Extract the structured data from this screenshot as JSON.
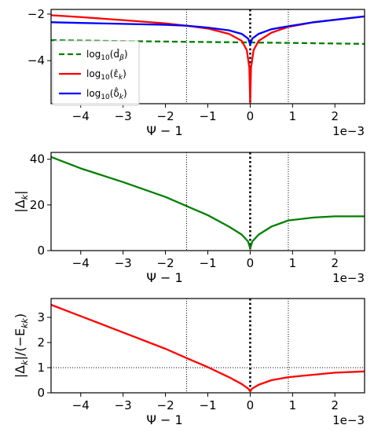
{
  "chart_data": [
    {
      "type": "line",
      "xlabel": "Ψ − 1",
      "ylabel": "",
      "x_multiplier": "1e−3",
      "xlim": [
        -4.7,
        2.7
      ],
      "ylim": [
        -5.85,
        -1.8
      ],
      "x_ticks": [
        -4,
        -3,
        -2,
        -1,
        0,
        1,
        2
      ],
      "x_tick_labels": [
        "−4",
        "−3",
        "−2",
        "−1",
        "0",
        "1",
        "2"
      ],
      "y_ticks": [
        -4,
        -2
      ],
      "y_tick_labels": [
        "−4",
        "−2"
      ],
      "vlines": [
        {
          "x": -1.5,
          "style": "dotted-thin"
        },
        {
          "x": 0,
          "style": "dotted-thick"
        },
        {
          "x": 0.9,
          "style": "dotted-thin"
        }
      ],
      "legend": {
        "placement": "center-left",
        "entries": [
          {
            "label_base": "log",
            "label_sub": "10",
            "label_arg": "(d̂",
            "label_arg_sub": "β",
            "label_close": ")",
            "color": "#008000",
            "dash": true
          },
          {
            "label_base": "log",
            "label_sub": "10",
            "label_arg": "(ε̂",
            "label_arg_sub": "k",
            "label_close": ")",
            "color": "#ff0000",
            "dash": false
          },
          {
            "label_base": "log",
            "label_sub": "10",
            "label_arg": "(δ̂",
            "label_arg_sub": "k",
            "label_close": ")",
            "color": "#0000ff",
            "dash": false
          }
        ]
      },
      "series": [
        {
          "color": "#008000",
          "dash": true,
          "x": [
            -4.7,
            -3,
            -1.5,
            0,
            1,
            2.7
          ],
          "y": [
            -3.12,
            -3.16,
            -3.19,
            -3.22,
            -3.24,
            -3.28
          ]
        },
        {
          "color": "#ff0000",
          "dash": false,
          "x": [
            -4.7,
            -4,
            -3,
            -2,
            -1.5,
            -1,
            -0.5,
            -0.2,
            -0.08,
            -0.02,
            0,
            0.02,
            0.08,
            0.2,
            0.5,
            0.9,
            1.5,
            2.7
          ],
          "y": [
            -2.05,
            -2.13,
            -2.26,
            -2.4,
            -2.5,
            -2.62,
            -2.85,
            -3.15,
            -3.55,
            -4.3,
            -5.8,
            -4.3,
            -3.55,
            -3.15,
            -2.8,
            -2.55,
            -2.35,
            -2.1
          ]
        },
        {
          "color": "#0000ff",
          "dash": false,
          "x": [
            -4.7,
            -4,
            -3,
            -2,
            -1.5,
            -1,
            -0.5,
            -0.2,
            -0.05,
            0,
            0.05,
            0.2,
            0.5,
            0.9,
            1.5,
            2.7
          ],
          "y": [
            -2.35,
            -2.38,
            -2.42,
            -2.46,
            -2.5,
            -2.58,
            -2.7,
            -2.85,
            -3.05,
            -3.3,
            -3.05,
            -2.85,
            -2.65,
            -2.52,
            -2.35,
            -2.1
          ]
        }
      ]
    },
    {
      "type": "line",
      "xlabel": "Ψ − 1",
      "ylabel": "|Δ_k|",
      "x_multiplier": "1e−3",
      "xlim": [
        -4.7,
        2.7
      ],
      "ylim": [
        0,
        43
      ],
      "x_ticks": [
        -4,
        -3,
        -2,
        -1,
        0,
        1,
        2
      ],
      "x_tick_labels": [
        "−4",
        "−3",
        "−2",
        "−1",
        "0",
        "1",
        "2"
      ],
      "y_ticks": [
        0,
        20,
        40
      ],
      "y_tick_labels": [
        "0",
        "20",
        "40"
      ],
      "vlines": [
        {
          "x": -1.5,
          "style": "dotted-thin"
        },
        {
          "x": 0,
          "style": "dotted-thick"
        },
        {
          "x": 0.9,
          "style": "dotted-thin"
        }
      ],
      "series": [
        {
          "color": "#008000",
          "dash": false,
          "x": [
            -4.7,
            -4,
            -3,
            -2,
            -1.5,
            -1,
            -0.5,
            -0.2,
            -0.05,
            0,
            0.05,
            0.2,
            0.5,
            0.9,
            1.5,
            2,
            2.7
          ],
          "y": [
            41,
            36,
            30,
            23.5,
            19.5,
            15.5,
            10.5,
            7,
            4,
            1,
            4,
            7,
            10.5,
            13.2,
            14.5,
            15,
            15
          ]
        }
      ]
    },
    {
      "type": "line",
      "xlabel": "Ψ − 1",
      "ylabel": "|Δ_k|/(−E_kk)",
      "x_multiplier": "1e−3",
      "xlim": [
        -4.7,
        2.7
      ],
      "ylim": [
        0,
        3.75
      ],
      "x_ticks": [
        -4,
        -3,
        -2,
        -1,
        0,
        1,
        2
      ],
      "x_tick_labels": [
        "−4",
        "−3",
        "−2",
        "−1",
        "0",
        "1",
        "2"
      ],
      "y_ticks": [
        0,
        1,
        2,
        3
      ],
      "y_tick_labels": [
        "0",
        "1",
        "2",
        "3"
      ],
      "hlines": [
        {
          "y": 1,
          "style": "dotted-thin"
        }
      ],
      "vlines": [
        {
          "x": -1.5,
          "style": "dotted-thin"
        },
        {
          "x": 0,
          "style": "dotted-thick"
        },
        {
          "x": 0.9,
          "style": "dotted-thin"
        }
      ],
      "series": [
        {
          "color": "#ff0000",
          "dash": false,
          "x": [
            -4.7,
            -4,
            -3,
            -2,
            -1.5,
            -1,
            -0.5,
            -0.2,
            -0.05,
            0,
            0.05,
            0.2,
            0.5,
            0.9,
            1.5,
            2,
            2.7
          ],
          "y": [
            3.5,
            3.05,
            2.4,
            1.75,
            1.38,
            1.02,
            0.62,
            0.35,
            0.17,
            0.06,
            0.17,
            0.32,
            0.5,
            0.62,
            0.72,
            0.8,
            0.85
          ]
        }
      ]
    }
  ]
}
